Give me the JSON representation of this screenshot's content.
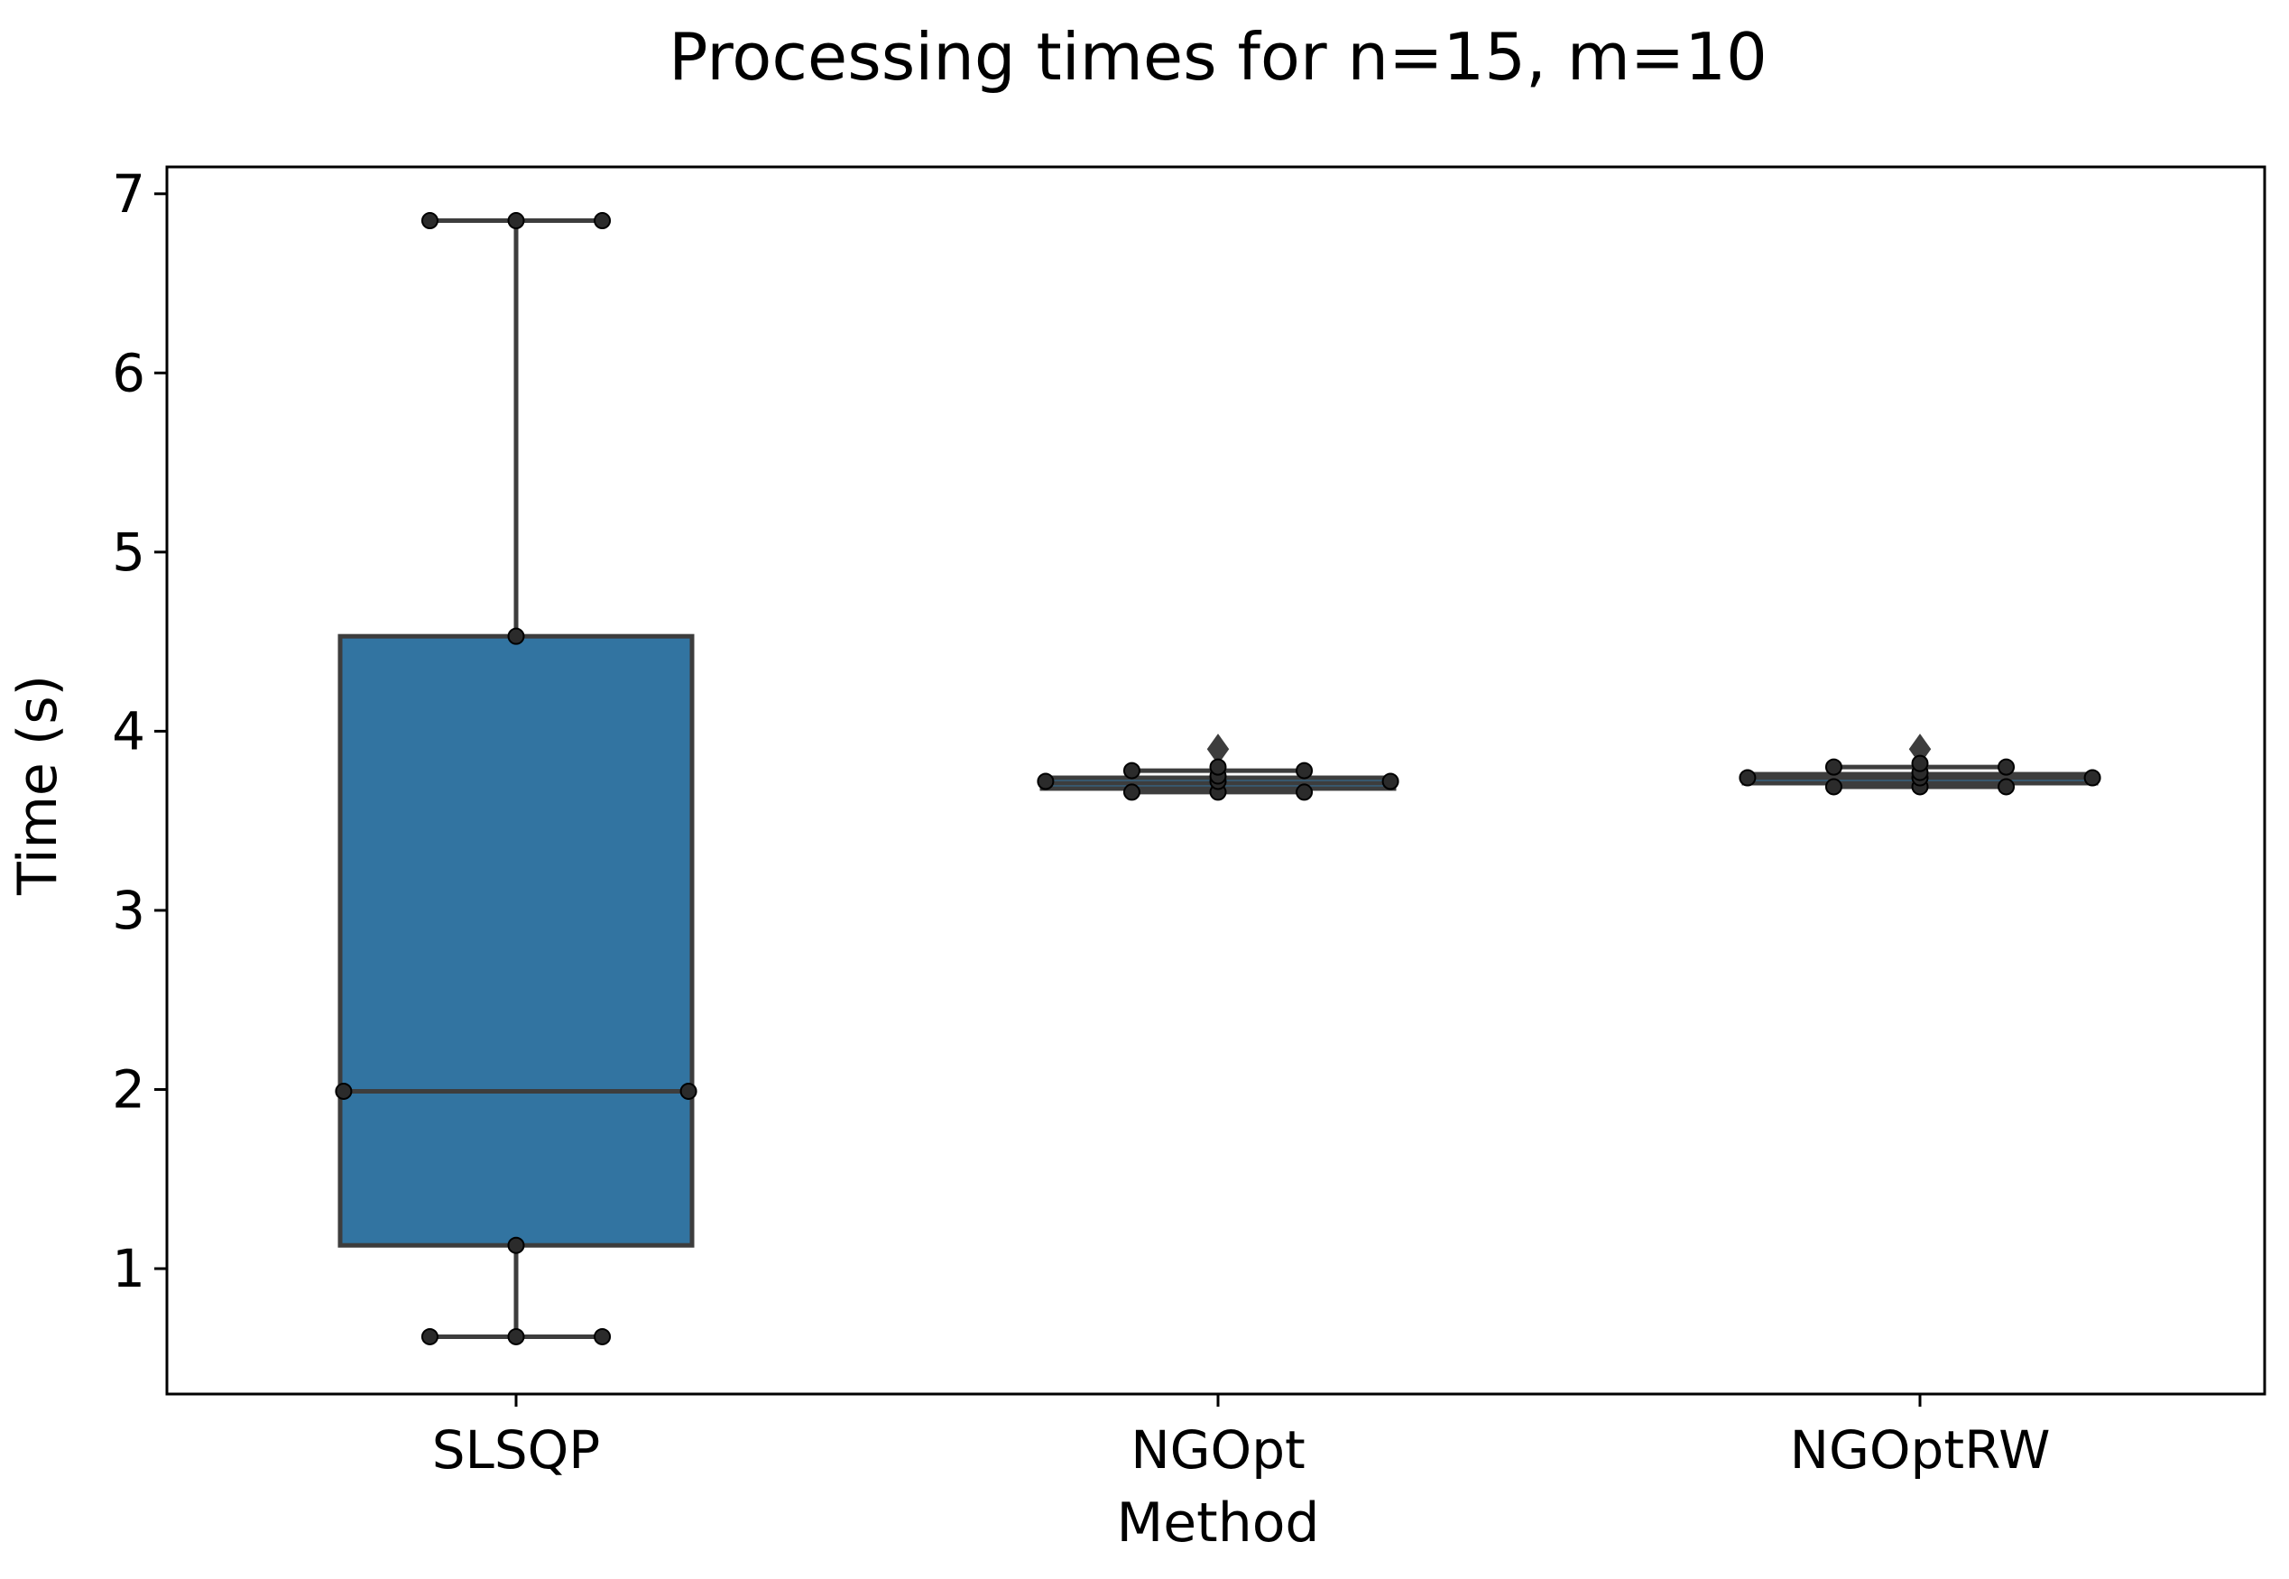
{
  "chart_data": {
    "type": "box",
    "title": "Processing times for n=15, m=10",
    "xlabel": "Method",
    "ylabel": "Time (s)",
    "categories": [
      "SLSQP",
      "NGOpt",
      "NGOptRW"
    ],
    "ylim": [
      0.3,
      7.15
    ],
    "yticks": [
      1,
      2,
      3,
      4,
      5,
      6,
      7
    ],
    "ytick_labels": [
      "1",
      "2",
      "3",
      "4",
      "5",
      "6",
      "7"
    ],
    "grid": false,
    "legend": "none",
    "boxes": [
      {
        "category": "SLSQP",
        "whisker_low": 0.62,
        "q1": 1.13,
        "median": 1.99,
        "q3": 4.53,
        "whisker_high": 6.85,
        "outliers": [],
        "points": [
          6.85,
          6.85,
          6.85,
          4.53,
          1.99,
          1.99,
          1.13,
          0.62,
          0.62,
          0.62
        ],
        "point_offsets": [
          -0.25,
          0,
          0.25,
          0,
          -0.5,
          0.5,
          0,
          -0.25,
          0,
          0.25
        ]
      },
      {
        "category": "NGOpt",
        "whisker_low": 3.66,
        "q1": 3.68,
        "median": 3.71,
        "q3": 3.74,
        "whisker_high": 3.78,
        "outliers": [
          3.9
        ],
        "points": [
          3.72,
          3.72,
          3.78,
          3.78,
          3.66,
          3.66,
          3.66,
          3.72,
          3.75,
          3.8
        ],
        "point_offsets": [
          -0.5,
          0.5,
          -0.25,
          0.25,
          -0.25,
          0.25,
          0,
          0,
          0,
          0
        ]
      },
      {
        "category": "NGOptRW",
        "whisker_low": 3.69,
        "q1": 3.71,
        "median": 3.74,
        "q3": 3.76,
        "whisker_high": 3.8,
        "outliers": [
          3.9
        ],
        "points": [
          3.74,
          3.74,
          3.8,
          3.8,
          3.69,
          3.69,
          3.69,
          3.74,
          3.77,
          3.82
        ],
        "point_offsets": [
          -0.5,
          0.5,
          -0.25,
          0.25,
          -0.25,
          0.25,
          0,
          0,
          0,
          0
        ]
      }
    ],
    "colors": {
      "box_fill": "#3274a1",
      "box_fill_narrow": "#3274a1",
      "edge": "#3d3d3d",
      "point": "#2b2b2b",
      "axes": "#000000"
    }
  }
}
